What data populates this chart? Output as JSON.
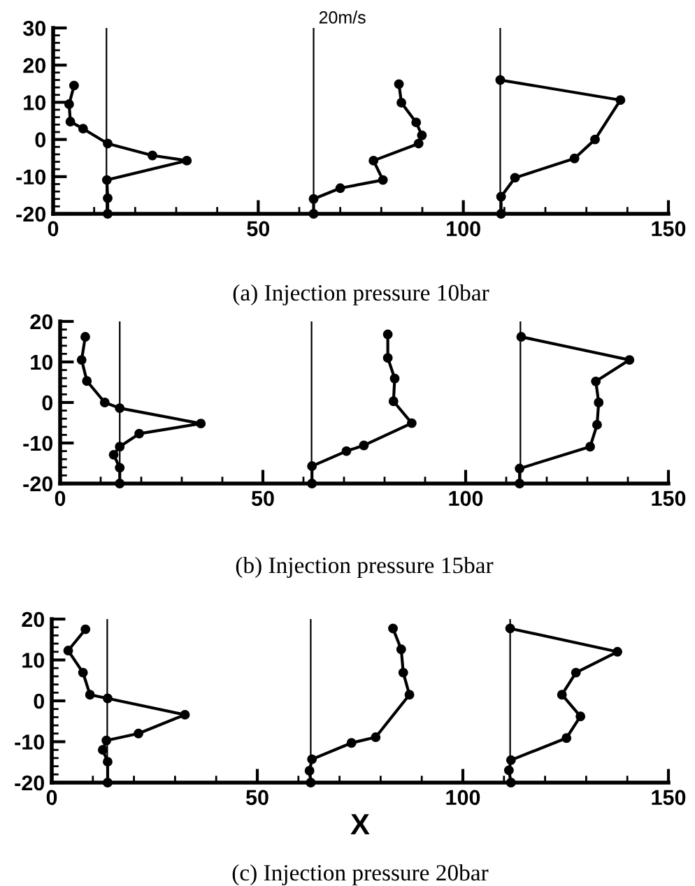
{
  "chart_data": [
    {
      "type": "line",
      "title": "(a) Injection pressure 10bar",
      "annotations": [
        "20m/s"
      ],
      "xlim": [
        0,
        150
      ],
      "xticks": [
        0,
        50,
        100,
        150
      ],
      "ylim": [
        -20,
        30
      ],
      "yticks": [
        -20,
        -10,
        0,
        10,
        20,
        30
      ],
      "marker": "circle",
      "line_style": "solid",
      "ref_lines": [
        {
          "axis": "x",
          "value": 13,
          "color": "#000000"
        },
        {
          "axis": "x",
          "value": 63.5,
          "color": "#000000"
        },
        {
          "axis": "x",
          "value": 109,
          "color": "#000000"
        }
      ],
      "series": [
        {
          "color": "#000000",
          "x": [
            5.1,
            3.9,
            4.2,
            7.3,
            13.3,
            24.2,
            32.6,
            13.1,
            13.3,
            13.3
          ],
          "values": [
            14.5,
            9.5,
            4.8,
            2.9,
            -1.1,
            -4.3,
            -5.7,
            -10.9,
            -15.8,
            -20
          ]
        },
        {
          "color": "#000000",
          "x": [
            84.3,
            84.9,
            88.5,
            89.9,
            89.1,
            78.1,
            80.4,
            70,
            63.5,
            63.5
          ],
          "values": [
            14.9,
            9.9,
            4.6,
            1.1,
            -1.1,
            -5.7,
            -10.9,
            -13.1,
            -16,
            -20
          ]
        },
        {
          "color": "#000000",
          "x": [
            109,
            138.3,
            132.1,
            127.1,
            112.6,
            109.2,
            109.2
          ],
          "values": [
            16,
            10.6,
            0,
            -5.1,
            -10.3,
            -15.4,
            -20
          ]
        }
      ]
    },
    {
      "type": "line",
      "title": "(b) Injection pressure 15bar",
      "xlim": [
        0,
        150
      ],
      "xticks": [
        0,
        50,
        100,
        150
      ],
      "ylim": [
        -20,
        20
      ],
      "yticks": [
        -20,
        -10,
        0,
        10,
        20
      ],
      "marker": "circle",
      "line_style": "solid",
      "ref_lines": [
        {
          "axis": "x",
          "value": 14.7,
          "color": "#000000"
        },
        {
          "axis": "x",
          "value": 62,
          "color": "#000000"
        },
        {
          "axis": "x",
          "value": 113.5,
          "color": "#000000"
        }
      ],
      "series": [
        {
          "color": "#000000",
          "x": [
            6.2,
            5.3,
            6.6,
            11,
            14.7,
            34.7,
            19.5,
            14.7,
            13.2,
            14.7,
            14.7
          ],
          "values": [
            16.2,
            10.5,
            5.3,
            0,
            -1.4,
            -5.2,
            -7.7,
            -10.9,
            -12.9,
            -16.1,
            -20
          ]
        },
        {
          "color": "#000000",
          "x": [
            80.8,
            80.8,
            82.5,
            82.2,
            86.7,
            74.9,
            70.6,
            62.1,
            62.1
          ],
          "values": [
            16.8,
            11,
            5.9,
            0.3,
            -5.1,
            -10.6,
            -12,
            -15.7,
            -20
          ]
        },
        {
          "color": "#000000",
          "x": [
            113.7,
            140.4,
            132.1,
            132.8,
            132.4,
            130.7,
            113.3,
            113.3
          ],
          "values": [
            16.2,
            10.5,
            5.2,
            0,
            -5.5,
            -10.9,
            -16.3,
            -20
          ]
        }
      ]
    },
    {
      "type": "line",
      "title": "(c) Injection pressure 20bar",
      "xlabel": "X",
      "xlim": [
        0,
        150
      ],
      "xticks": [
        0,
        50,
        100,
        150
      ],
      "ylim": [
        -20,
        20
      ],
      "yticks": [
        -20,
        -10,
        0,
        10,
        20
      ],
      "marker": "circle",
      "line_style": "solid",
      "ref_lines": [
        {
          "axis": "x",
          "value": 13.5,
          "color": "#000000"
        },
        {
          "axis": "x",
          "value": 63,
          "color": "#000000"
        },
        {
          "axis": "x",
          "value": 111.5,
          "color": "#000000"
        }
      ],
      "series": [
        {
          "color": "#000000",
          "x": [
            8.2,
            4,
            7.6,
            9.3,
            13.6,
            32.4,
            21.1,
            13.3,
            12.4,
            13.6,
            13.6
          ],
          "values": [
            17.5,
            12.3,
            6.9,
            1.5,
            0.6,
            -3.4,
            -8,
            -9.7,
            -12,
            -14.9,
            -20
          ]
        },
        {
          "color": "#000000",
          "x": [
            83,
            85,
            85.5,
            87,
            78.8,
            72.9,
            63.3,
            62.7,
            63
          ],
          "values": [
            17.7,
            12.6,
            6.9,
            1.5,
            -8.9,
            -10.3,
            -14.3,
            -17.1,
            -20
          ]
        },
        {
          "color": "#000000",
          "x": [
            111.5,
            137.6,
            127.5,
            124.1,
            128.6,
            125.2,
            111.7,
            111.2,
            111.7
          ],
          "values": [
            17.7,
            12,
            6.9,
            1.5,
            -3.8,
            -9.1,
            -14.5,
            -17,
            -20
          ]
        }
      ]
    }
  ]
}
